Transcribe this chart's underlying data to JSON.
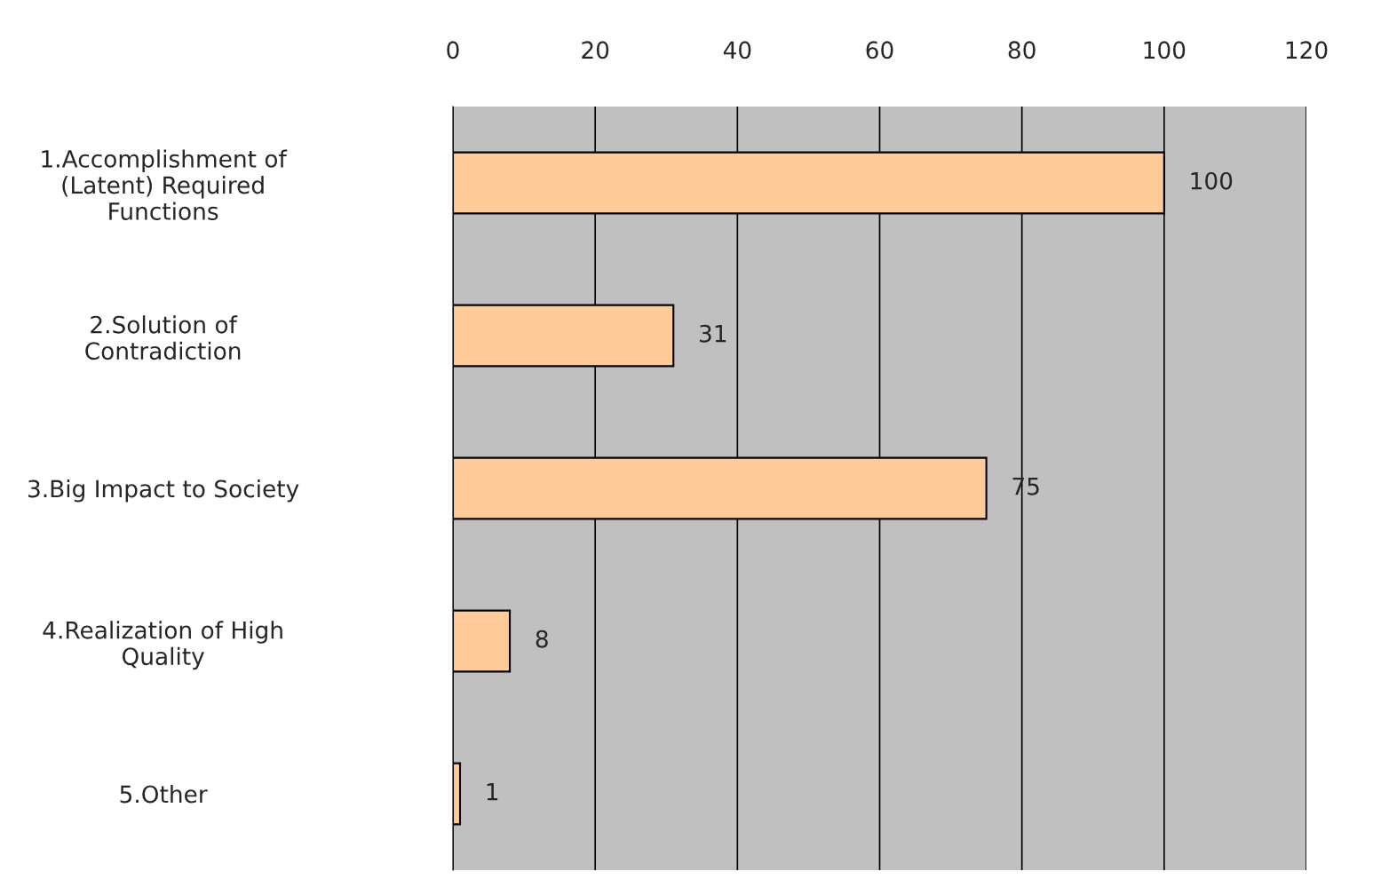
{
  "chart_data": {
    "type": "bar",
    "orientation": "horizontal",
    "categories": [
      "1.Accomplishment of\n(Latent) Required\nFunctions",
      "2.Solution of\nContradiction",
      "3.Big Impact to Society",
      "4.Realization of High\nQuality",
      "5.Other"
    ],
    "values": [
      100,
      31,
      75,
      8,
      1
    ],
    "color": "#ffcc99",
    "xlim": [
      0,
      120
    ],
    "xticks": [
      0,
      20,
      40,
      60,
      80,
      100,
      120
    ],
    "grid": "x",
    "data_labels": true
  }
}
